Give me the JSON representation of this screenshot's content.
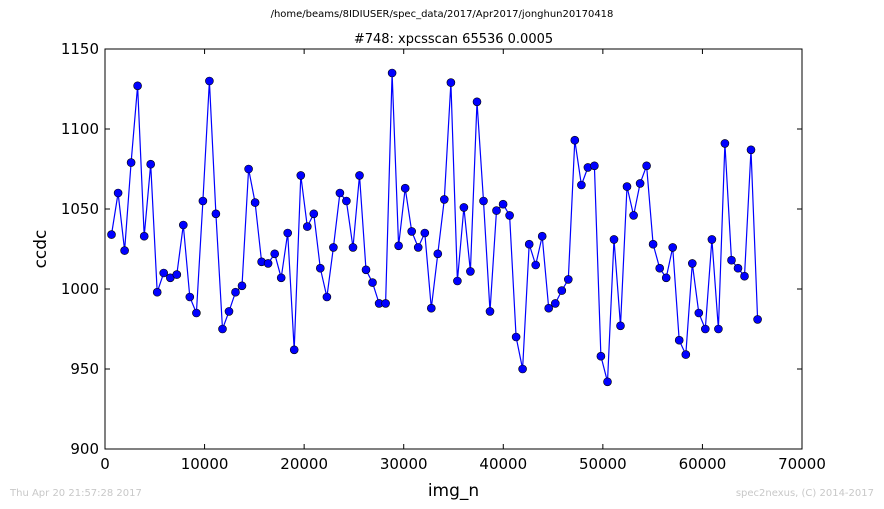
{
  "page": {
    "suptitle": "/home/beams/8IDIUSER/spec_data/2017/Apr2017/jonghun20170418",
    "footer_left": "Thu Apr 20 21:57:28 2017",
    "footer_right": "spec2nexus, (C) 2014-2017"
  },
  "chart_data": {
    "type": "line",
    "title": "#748: xpcsscan 65536 0.0005",
    "xlabel": "img_n",
    "ylabel": "ccdc",
    "xlim": [
      0,
      70000
    ],
    "ylim": [
      900,
      1150
    ],
    "xticks": [
      0,
      10000,
      20000,
      30000,
      40000,
      50000,
      60000,
      70000
    ],
    "yticks": [
      900,
      950,
      1000,
      1050,
      1100,
      1150
    ],
    "grid": false,
    "marker": "circle",
    "color": "#0000ff",
    "series": [
      {
        "x": [
          655,
          1311,
          1966,
          2621,
          3277,
          3932,
          4588,
          5243,
          5898,
          6554,
          7209,
          7864,
          8520,
          9175,
          9830,
          10486,
          11141,
          11796,
          12452,
          13107,
          13763,
          14418,
          15073,
          15729,
          16384,
          17039,
          17695,
          18350,
          19005,
          19661,
          20316,
          20972,
          21627,
          22282,
          22938,
          23593,
          24248,
          24904,
          25559,
          26214,
          26870,
          27525,
          28180,
          28836,
          29491,
          30147,
          30802,
          31457,
          32113,
          32768,
          33423,
          34079,
          34734,
          35389,
          36045,
          36700,
          37356,
          38011,
          38666,
          39322,
          39977,
          40632,
          41288,
          41943,
          42598,
          43254,
          43909,
          44564,
          45220,
          45875,
          46531,
          47186,
          47841,
          48497,
          49152,
          49807,
          50463,
          51118,
          51773,
          52429,
          53084,
          53740,
          54395,
          55050,
          55706,
          56361,
          57016,
          57672,
          58327,
          58982,
          59638,
          60293,
          60948,
          61604,
          62259,
          62915,
          63570,
          64225,
          64881,
          65536
        ],
        "y": [
          1034,
          1060,
          1024,
          1079,
          1127,
          1033,
          1078,
          998,
          1010,
          1007,
          1009,
          1040,
          995,
          985,
          1055,
          1130,
          1047,
          975,
          986,
          998,
          1002,
          1075,
          1054,
          1017,
          1016,
          1022,
          1007,
          1035,
          962,
          1071,
          1039,
          1047,
          1013,
          995,
          1026,
          1060,
          1055,
          1026,
          1071,
          1012,
          1004,
          991,
          991,
          1135,
          1027,
          1063,
          1036,
          1026,
          1035,
          988,
          1022,
          1056,
          1129,
          1005,
          1051,
          1011,
          1117,
          1055,
          986,
          1049,
          1053,
          1046,
          970,
          950,
          1028,
          1015,
          1033,
          988,
          991,
          999,
          1006,
          1093,
          1065,
          1076,
          1077,
          958,
          942,
          1031,
          977,
          1064,
          1046,
          1066,
          1077,
          1028,
          1013,
          1007,
          1026,
          968,
          959,
          1016,
          985,
          975,
          1031,
          975,
          1091,
          1018,
          1013,
          1008,
          1087,
          981
        ]
      }
    ]
  }
}
